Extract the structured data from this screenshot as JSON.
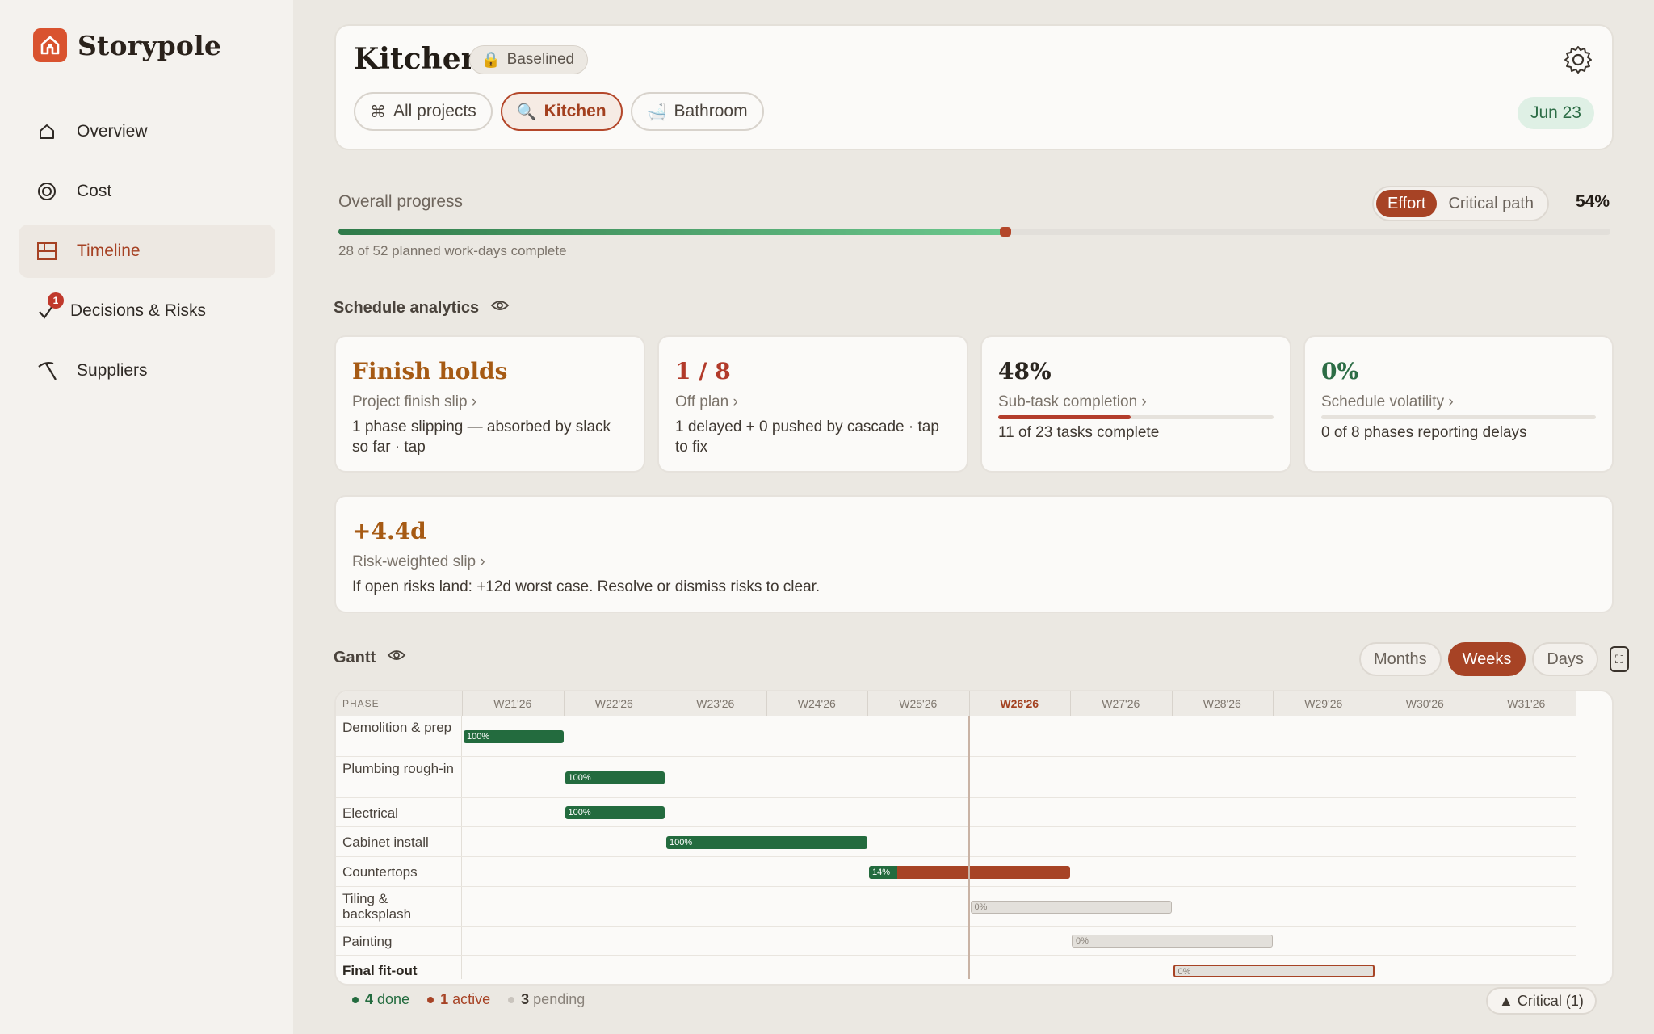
{
  "brand": {
    "name": "Storypole"
  },
  "nav": [
    {
      "label": "Overview",
      "icon": "home-icon"
    },
    {
      "label": "Cost",
      "icon": "target-icon"
    },
    {
      "label": "Timeline",
      "icon": "timeline-icon"
    },
    {
      "label": "Decisions & Risks",
      "icon": "check-icon",
      "badge": "1"
    },
    {
      "label": "Suppliers",
      "icon": "pickaxe-icon"
    }
  ],
  "header": {
    "title": "Kitchen",
    "status": "Baselined",
    "tabs": [
      {
        "label": "All projects",
        "icon": "⌘"
      },
      {
        "label": "Kitchen",
        "icon": "🔍"
      },
      {
        "label": "Bathroom",
        "icon": "🛁"
      }
    ],
    "date": "Jun 23"
  },
  "progress": {
    "label": "Overall progress",
    "modes": [
      "Effort",
      "Critical path"
    ],
    "percent_text": "54%",
    "fraction": 0.54,
    "subtitle": "28 of 52 planned work-days complete"
  },
  "analytics": {
    "title": "Schedule analytics",
    "cards": [
      {
        "big": "Finish holds",
        "label": "Project finish slip ›",
        "desc": "1 phase slipping — absorbed by slack so far · tap",
        "color": "#a65a14"
      },
      {
        "big": "1 / 8",
        "label": "Off plan ›",
        "desc": "1 delayed + 0 pushed by cascade · tap to fix",
        "color": "#b23a2a"
      },
      {
        "big": "48%",
        "label": "Sub-task completion ›",
        "desc": "11 of 23 tasks complete",
        "fraction": 0.48,
        "color": "#2b2620"
      },
      {
        "big": "0%",
        "label": "Schedule volatility ›",
        "desc": "0 of 8 phases reporting delays",
        "fraction": 0.0,
        "color": "#2d6d46"
      }
    ],
    "risk": {
      "big": "+4.4d",
      "label": "Risk-weighted slip ›",
      "desc": "If open risks land: +12d worst case. Resolve or dismiss risks to clear.",
      "color": "#a65a14"
    }
  },
  "gantt": {
    "title": "Gantt",
    "zoom": [
      "Months",
      "Weeks",
      "Days"
    ],
    "active_zoom": "Weeks",
    "phase_header": "PHASE",
    "weeks": [
      "W21'26",
      "W22'26",
      "W23'26",
      "W24'26",
      "W25'26",
      "W26'26",
      "W27'26",
      "W28'26",
      "W29'26",
      "W30'26",
      "W31'26"
    ],
    "current_week": "W26'26",
    "rows": [
      {
        "name": "Demolition & prep",
        "start": 0,
        "end": 1,
        "progress_text": "100%",
        "progress": 1.0,
        "state": "done"
      },
      {
        "name": "Plumbing rough-in",
        "start": 1,
        "end": 2,
        "progress_text": "100%",
        "progress": 1.0,
        "state": "done"
      },
      {
        "name": "Electrical",
        "start": 1,
        "end": 2,
        "progress_text": "100%",
        "progress": 1.0,
        "state": "done"
      },
      {
        "name": "Cabinet install",
        "start": 2,
        "end": 4,
        "progress_text": "100%",
        "progress": 1.0,
        "state": "done"
      },
      {
        "name": "Countertops",
        "start": 4,
        "end": 6,
        "progress_text": "14%",
        "progress": 0.14,
        "state": "active"
      },
      {
        "name": "Tiling & backsplash",
        "start": 5,
        "end": 7,
        "progress_text": "0%",
        "progress": 0.0,
        "state": "pending"
      },
      {
        "name": "Painting",
        "start": 6,
        "end": 8,
        "progress_text": "0%",
        "progress": 0.0,
        "state": "pending"
      },
      {
        "name": "Final fit-out",
        "start": 7,
        "end": 9,
        "progress_text": "0%",
        "progress": 0.0,
        "state": "critical"
      }
    ],
    "legend": {
      "done_count": "4",
      "done_label": "done",
      "active_count": "1",
      "active_label": "active",
      "pending_count": "3",
      "pending_label": "pending"
    },
    "critical_button": "▲ Critical (1)"
  },
  "colors": {
    "accent": "#a74325",
    "done": "#236b3e",
    "pending": "#e3e0db"
  }
}
